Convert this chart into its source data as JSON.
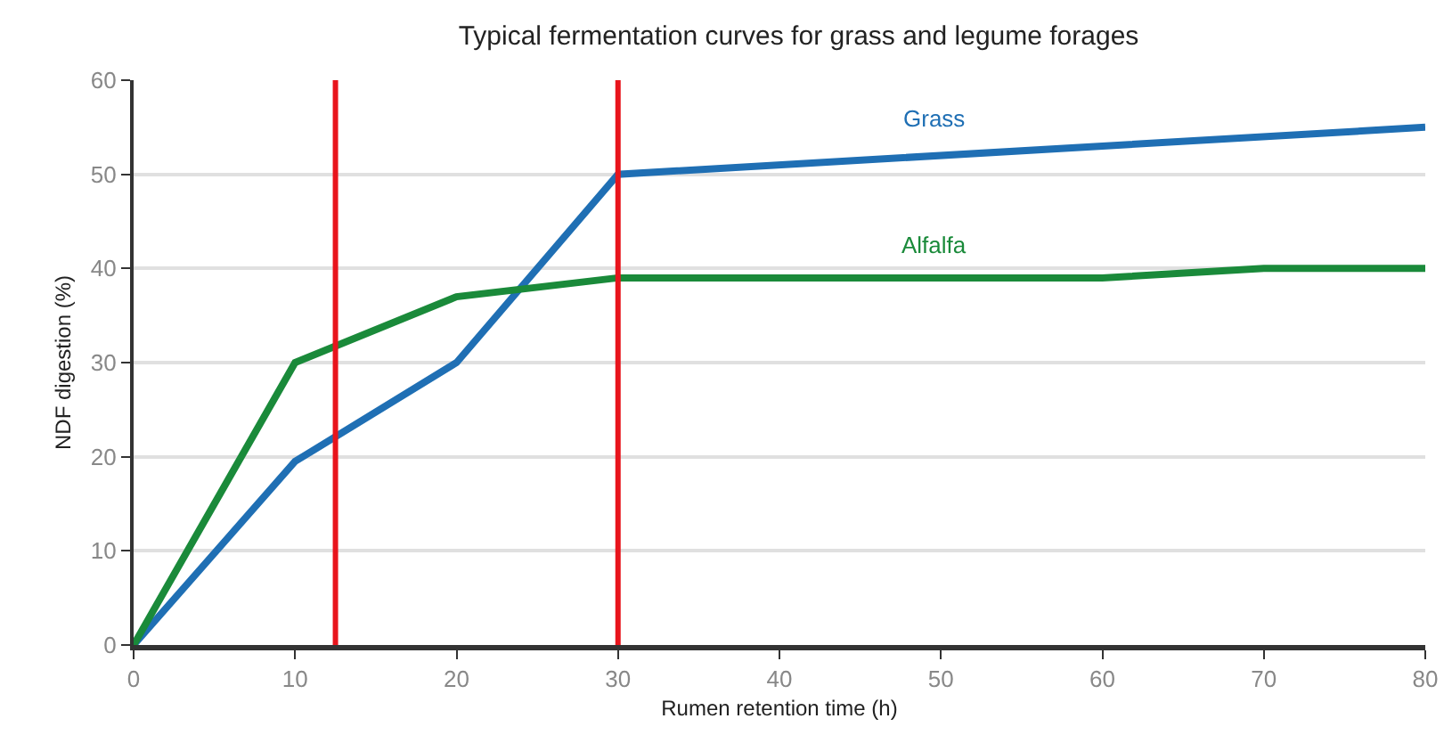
{
  "chart_data": {
    "type": "line",
    "title": "Typical fermentation curves for grass and legume forages",
    "xlabel": "Rumen retention time (h)",
    "ylabel": "NDF digestion (%)",
    "series": [
      {
        "name": "Grass",
        "color": "#1f6fb4",
        "x": [
          0,
          10,
          20,
          30,
          80
        ],
        "values": [
          0,
          19.5,
          30,
          50,
          55
        ]
      },
      {
        "name": "Alfalfa",
        "color": "#1a8a3a",
        "x": [
          0,
          10,
          20,
          30,
          60,
          70,
          80
        ],
        "values": [
          0,
          30,
          37,
          39,
          39,
          40,
          40
        ]
      }
    ],
    "xlim": [
      0,
      80
    ],
    "xticks": [
      0,
      10,
      20,
      30,
      40,
      50,
      60,
      70,
      80
    ],
    "ylim": [
      0,
      60
    ],
    "yticks": [
      0,
      10,
      20,
      30,
      40,
      50,
      60
    ],
    "ref_lines": [
      {
        "axis": "x",
        "value": 12.5,
        "color": "#e8141c"
      },
      {
        "axis": "x",
        "value": 30,
        "color": "#e8141c"
      }
    ],
    "grid": "y",
    "legend": false,
    "marker": "none",
    "line_style": "solid"
  }
}
